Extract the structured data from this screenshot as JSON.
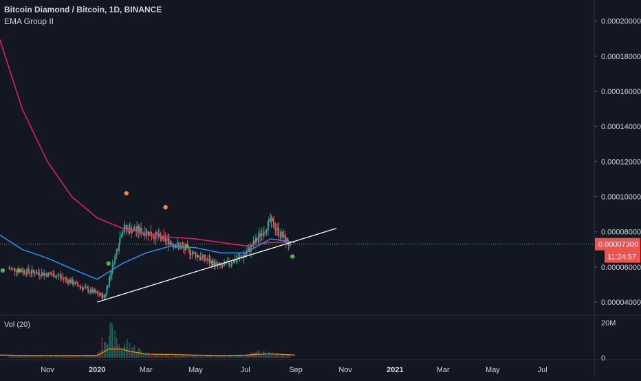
{
  "header": {
    "title": "Bitcoin Diamond / Bitcoin, 1D, BINANCE",
    "indicator": "EMA Group II"
  },
  "volume_pane": {
    "label": "Vol (20)",
    "y_ticks": [
      "20M",
      "0"
    ]
  },
  "price_axis": {
    "ticks": [
      "0.00020000",
      "0.00018000",
      "0.00016000",
      "0.00014000",
      "0.00012000",
      "0.00010000",
      "0.00008000",
      "0.00006000",
      "0.00004000"
    ],
    "last_price": "0.00007300",
    "countdown": "11:24:57"
  },
  "time_axis": {
    "ticks": [
      "Nov",
      "2020",
      "Mar",
      "May",
      "Jul",
      "Sep",
      "Nov",
      "2021",
      "Mar",
      "May",
      "Jul"
    ]
  },
  "colors": {
    "background": "#131722",
    "up": "#26a69a",
    "down": "#ef5350",
    "ema_long": "#e91e63",
    "ema_short": "#2196f3",
    "trendline": "#ffffff",
    "grid": "#1f2330",
    "volume_ma": "#ff9800",
    "pivot_high_marker": "#ff7f50",
    "pivot_low_marker": "#4caf50"
  },
  "chart_data": {
    "type": "line",
    "price_ylim": [
      3.3e-05,
      0.000212
    ],
    "series": [
      {
        "x": [
          "2019-09-15",
          "2019-10-15",
          "2019-11-15",
          "2019-12-15",
          "2020-01-10",
          "2020-02-01",
          "2020-03-01",
          "2020-04-01",
          "2020-05-01",
          "2020-06-01",
          "2020-07-01",
          "2020-08-01",
          "2020-08-25"
        ],
        "values": [
          5.9e-05,
          5.7e-05,
          5.5e-05,
          4.8e-05,
          4.3e-05,
          8.2e-05,
          8e-05,
          7.4e-05,
          6.7e-05,
          6e-05,
          6.7e-05,
          8.6e-05,
          7.2e-05
        ]
      },
      {
        "x": [
          "2019-09-01",
          "2019-10-01",
          "2019-11-01",
          "2019-12-01",
          "2020-01-01",
          "2020-02-01",
          "2020-03-01",
          "2020-04-01",
          "2020-05-01",
          "2020-06-01",
          "2020-07-01",
          "2020-08-01",
          "2020-08-31"
        ],
        "values": [
          0.000193,
          0.00015,
          0.00012,
          0.0001,
          8.8e-05,
          8.2e-05,
          7.9e-05,
          7.7e-05,
          7.6e-05,
          7.4e-05,
          7.2e-05,
          7.4e-05,
          7.4e-05
        ]
      },
      {
        "x": [
          "2019-09-01",
          "2019-10-01",
          "2019-11-01",
          "2019-12-01",
          "2020-01-01",
          "2020-02-01",
          "2020-03-01",
          "2020-04-01",
          "2020-05-01",
          "2020-06-01",
          "2020-07-01",
          "2020-08-01",
          "2020-08-31"
        ],
        "values": [
          7.9e-05,
          7e-05,
          6.5e-05,
          5.9e-05,
          5.3e-05,
          6.2e-05,
          6.8e-05,
          7.2e-05,
          7.1e-05,
          6.8e-05,
          6.8e-05,
          7.6e-05,
          7.4e-05
        ]
      },
      {
        "x": [
          "2020-01-01",
          "2020-10-21"
        ],
        "values": [
          4e-05,
          8.2e-05
        ]
      }
    ],
    "markers_high": [
      {
        "x": "2020-02-06",
        "y": 0.000102
      },
      {
        "x": "2020-03-25",
        "y": 9.4e-05
      }
    ],
    "markers_low": [
      {
        "x": "2019-09-07",
        "y": 5.8e-05
      },
      {
        "x": "2019-09-27",
        "y": 5.8e-05
      },
      {
        "x": "2020-01-15",
        "y": 6.2e-05
      },
      {
        "x": "2020-04-20",
        "y": 7.2e-05
      },
      {
        "x": "2020-08-28",
        "y": 6.6e-05
      }
    ],
    "volume": {
      "ylim": [
        0,
        22000000
      ],
      "x": [
        "2019-09-01",
        "2019-10-01",
        "2019-11-01",
        "2019-12-01",
        "2020-01-01",
        "2020-01-10",
        "2020-01-15",
        "2020-02-01",
        "2020-02-06",
        "2020-03-01",
        "2020-04-01",
        "2020-05-01",
        "2020-06-01",
        "2020-07-01",
        "2020-07-20",
        "2020-08-01",
        "2020-08-31"
      ],
      "values": [
        1500000,
        1200000,
        1000000,
        1200000,
        1500000,
        14000000,
        20000000,
        6000000,
        10000000,
        3000000,
        1500000,
        1200000,
        1000000,
        1500000,
        4000000,
        2500000,
        1500000
      ],
      "ma": [
        1500000,
        1300000,
        1200000,
        1200000,
        1300000,
        3500000,
        5000000,
        5000000,
        4000000,
        2000000,
        1800000,
        1400000,
        1200000,
        1400000,
        2000000,
        2200000,
        1500000
      ]
    }
  }
}
